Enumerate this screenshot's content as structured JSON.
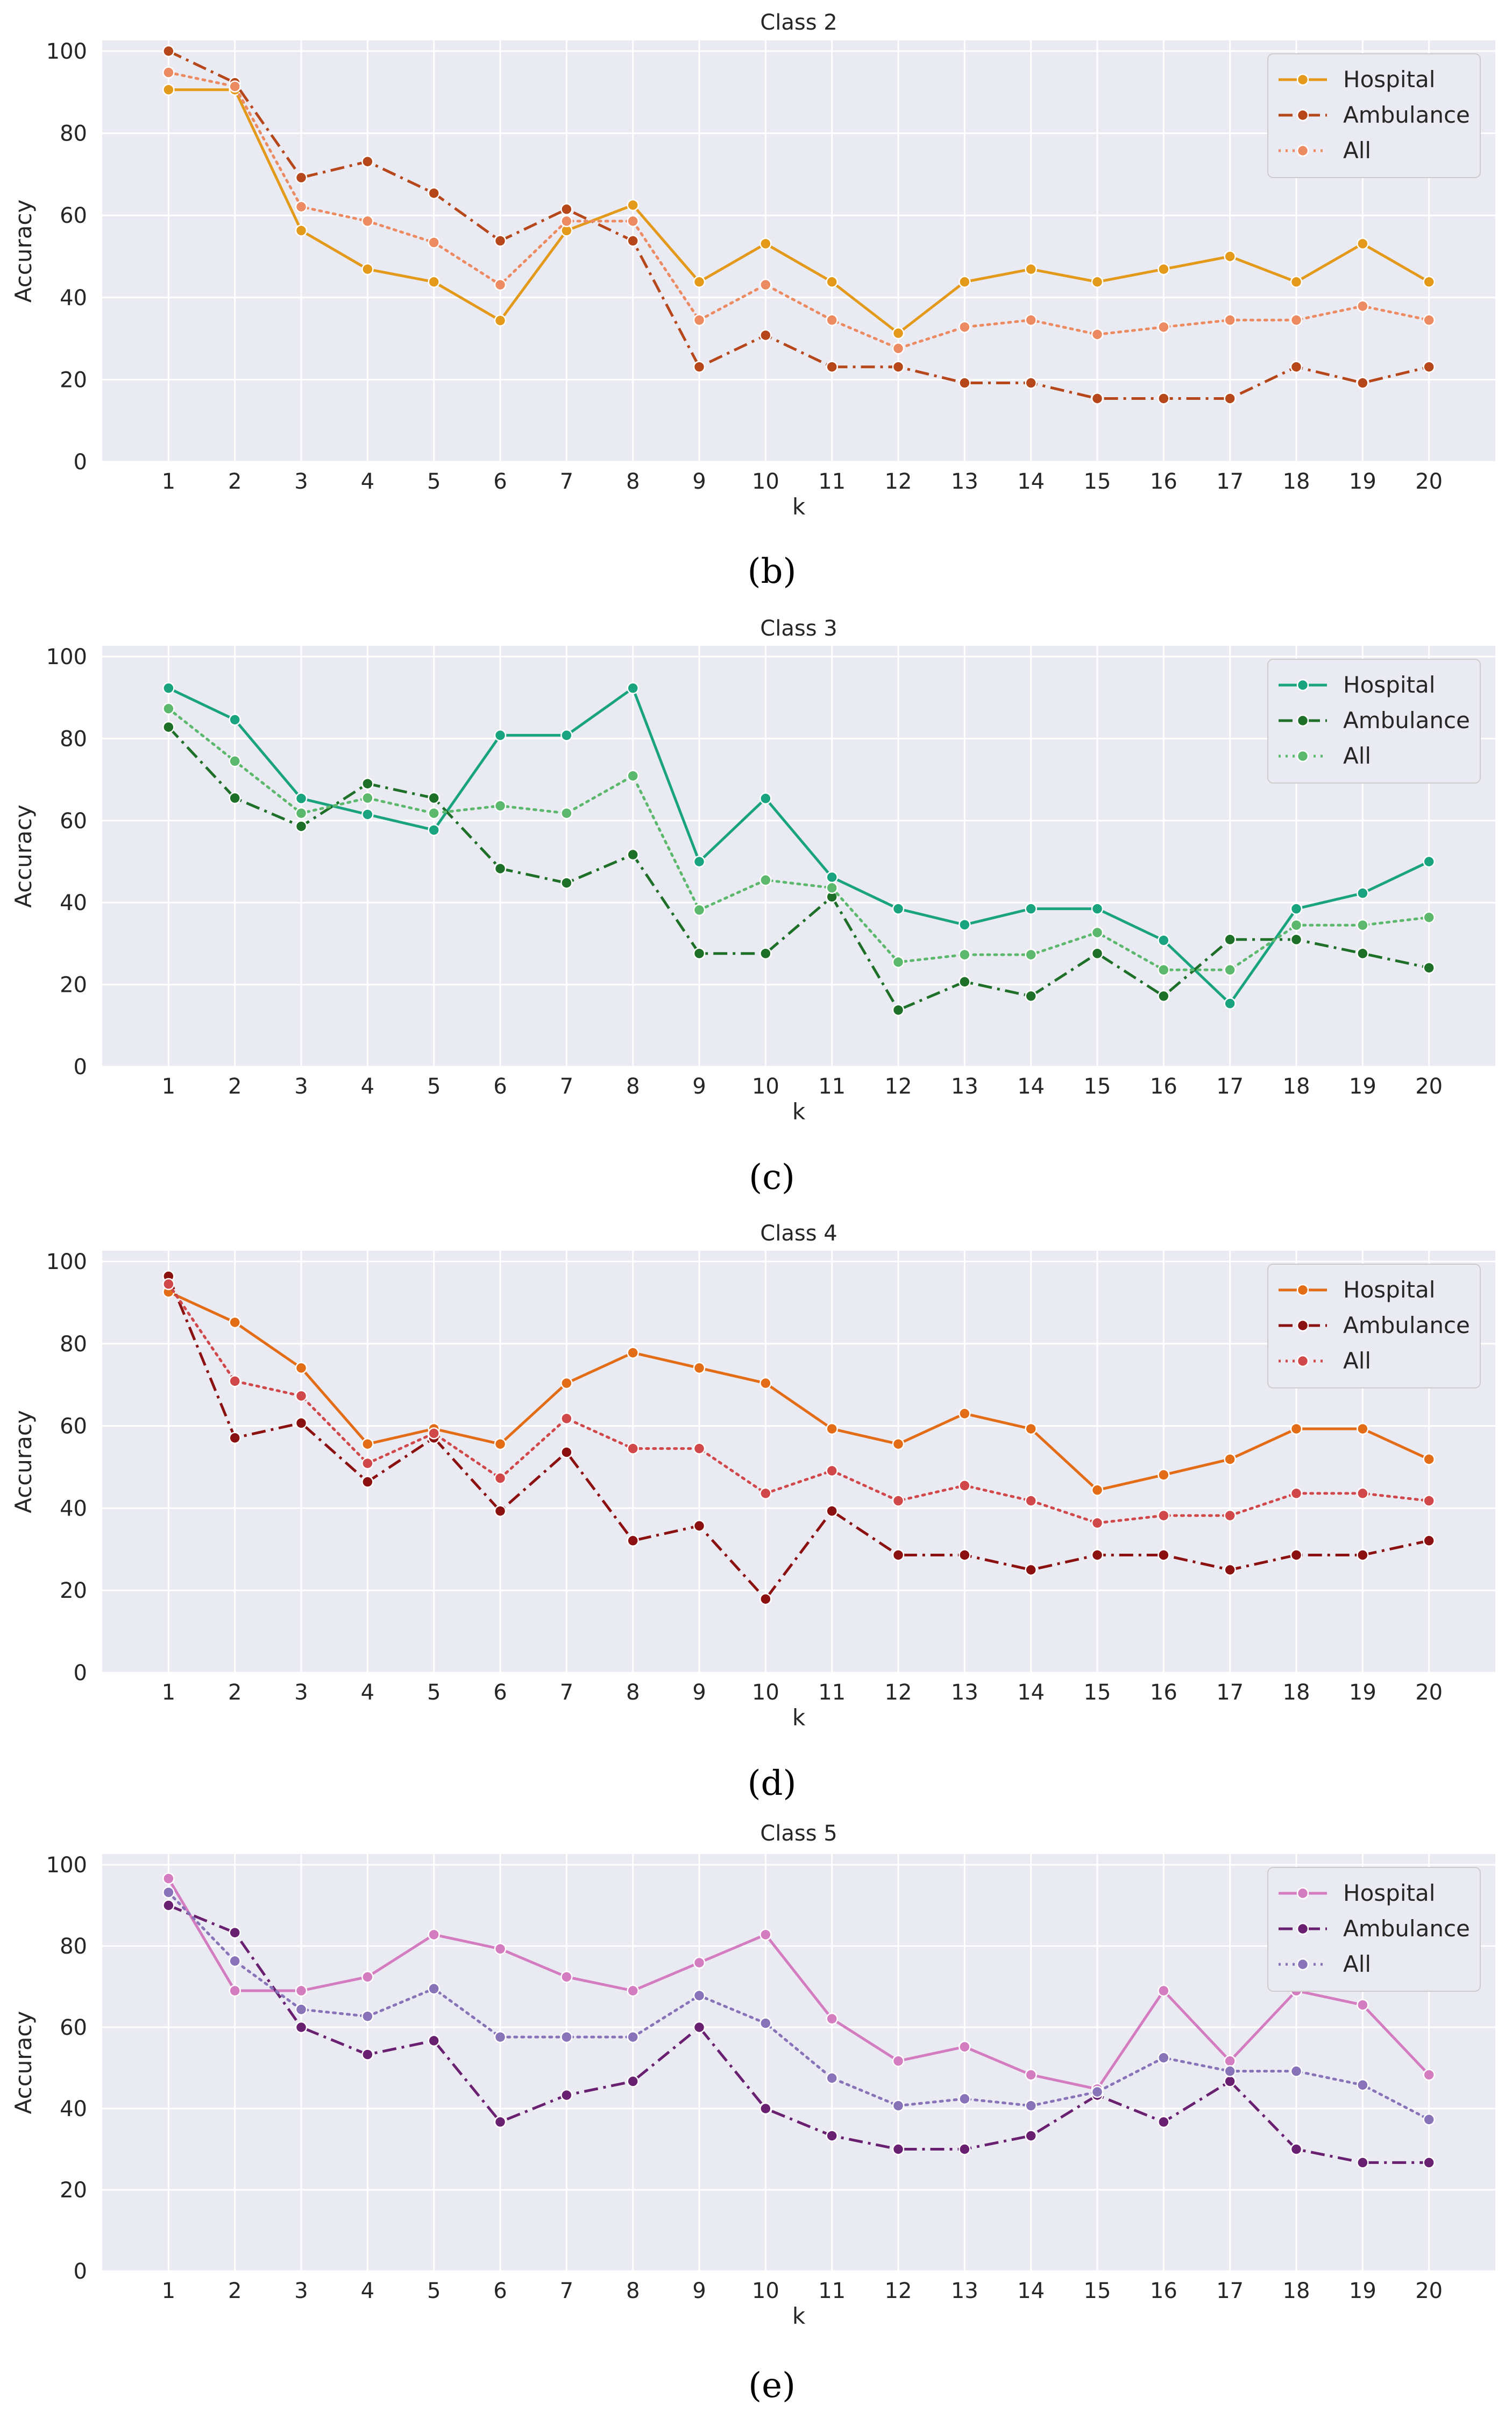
{
  "chart_data": [
    {
      "type": "line",
      "title": "Class 2",
      "panel_label": "(b)",
      "xlabel": "k",
      "ylabel": "Accuracy",
      "ylim": [
        0,
        100
      ],
      "yticks": [
        0,
        20,
        40,
        60,
        80,
        100
      ],
      "x": [
        1,
        2,
        3,
        4,
        5,
        6,
        7,
        8,
        9,
        10,
        11,
        12,
        13,
        14,
        15,
        16,
        17,
        18,
        19,
        20
      ],
      "grid": true,
      "legend_position": "top-right",
      "series": [
        {
          "name": "Hospital",
          "style": "solid",
          "color": "#E39A1B",
          "values": [
            90.6,
            90.6,
            56.3,
            46.9,
            43.8,
            34.4,
            56.3,
            62.5,
            43.8,
            53.1,
            43.8,
            31.3,
            43.8,
            46.9,
            43.8,
            46.9,
            50.0,
            43.8,
            53.1,
            43.8
          ]
        },
        {
          "name": "Ambulance",
          "style": "dashdot",
          "color": "#B5471B",
          "values": [
            100.0,
            92.3,
            69.2,
            73.1,
            65.4,
            53.8,
            61.5,
            53.8,
            23.1,
            30.8,
            23.1,
            23.1,
            19.2,
            19.2,
            15.4,
            15.4,
            15.4,
            23.1,
            19.2,
            23.1
          ]
        },
        {
          "name": "All",
          "style": "dotted",
          "color": "#EC8A62",
          "values": [
            94.8,
            91.4,
            62.1,
            58.6,
            53.4,
            43.1,
            58.6,
            58.6,
            34.5,
            43.1,
            34.5,
            27.6,
            32.8,
            34.5,
            31.0,
            32.8,
            34.5,
            34.5,
            37.9,
            34.5
          ]
        }
      ]
    },
    {
      "type": "line",
      "title": "Class 3",
      "panel_label": "(c)",
      "xlabel": "k",
      "ylabel": "Accuracy",
      "ylim": [
        0,
        100
      ],
      "yticks": [
        0,
        20,
        40,
        60,
        80,
        100
      ],
      "x": [
        1,
        2,
        3,
        4,
        5,
        6,
        7,
        8,
        9,
        10,
        11,
        12,
        13,
        14,
        15,
        16,
        17,
        18,
        19,
        20
      ],
      "grid": true,
      "legend_position": "top-right",
      "series": [
        {
          "name": "Hospital",
          "style": "solid",
          "color": "#1AA37F",
          "values": [
            92.3,
            84.6,
            65.4,
            61.5,
            57.7,
            80.8,
            80.8,
            92.3,
            50.0,
            65.4,
            46.2,
            38.5,
            34.6,
            38.5,
            38.5,
            30.8,
            15.4,
            38.5,
            42.3,
            50.0
          ]
        },
        {
          "name": "Ambulance",
          "style": "dashdot",
          "color": "#1E6F28",
          "values": [
            82.8,
            65.5,
            58.6,
            69.0,
            65.5,
            48.3,
            44.8,
            51.7,
            27.6,
            27.6,
            41.4,
            13.8,
            20.7,
            17.2,
            27.6,
            17.2,
            31.0,
            31.0,
            27.6,
            24.1
          ]
        },
        {
          "name": "All",
          "style": "dotted",
          "color": "#5CB86C",
          "values": [
            87.3,
            74.5,
            61.8,
            65.5,
            61.8,
            63.6,
            61.8,
            70.9,
            38.2,
            45.5,
            43.6,
            25.5,
            27.3,
            27.3,
            32.7,
            23.6,
            23.6,
            34.5,
            34.5,
            36.4
          ]
        }
      ]
    },
    {
      "type": "line",
      "title": "Class 4",
      "panel_label": "(d)",
      "xlabel": "k",
      "ylabel": "Accuracy",
      "ylim": [
        0,
        100
      ],
      "yticks": [
        0,
        20,
        40,
        60,
        80,
        100
      ],
      "x": [
        1,
        2,
        3,
        4,
        5,
        6,
        7,
        8,
        9,
        10,
        11,
        12,
        13,
        14,
        15,
        16,
        17,
        18,
        19,
        20
      ],
      "grid": true,
      "legend_position": "top-right",
      "series": [
        {
          "name": "Hospital",
          "style": "solid",
          "color": "#E26D16",
          "values": [
            92.6,
            85.2,
            74.1,
            55.6,
            59.3,
            55.6,
            70.4,
            77.8,
            74.1,
            70.4,
            59.3,
            55.6,
            63.0,
            59.3,
            44.4,
            48.1,
            51.9,
            59.3,
            59.3,
            51.9
          ]
        },
        {
          "name": "Ambulance",
          "style": "dashdot",
          "color": "#8B1010",
          "values": [
            96.4,
            57.1,
            60.7,
            46.4,
            57.1,
            39.3,
            53.6,
            32.1,
            35.7,
            17.9,
            39.3,
            28.6,
            28.6,
            25.0,
            28.6,
            28.6,
            25.0,
            28.6,
            28.6,
            32.1
          ]
        },
        {
          "name": "All",
          "style": "dotted",
          "color": "#D0484A",
          "values": [
            94.5,
            70.9,
            67.3,
            50.9,
            58.2,
            47.3,
            61.8,
            54.5,
            54.5,
            43.6,
            49.1,
            41.8,
            45.5,
            41.8,
            36.4,
            38.2,
            38.2,
            43.6,
            43.6,
            41.8
          ]
        }
      ]
    },
    {
      "type": "line",
      "title": "Class 5",
      "panel_label": "(e)",
      "xlabel": "k",
      "ylabel": "Accuracy",
      "ylim": [
        0,
        100
      ],
      "yticks": [
        0,
        20,
        40,
        60,
        80,
        100
      ],
      "x": [
        1,
        2,
        3,
        4,
        5,
        6,
        7,
        8,
        9,
        10,
        11,
        12,
        13,
        14,
        15,
        16,
        17,
        18,
        19,
        20
      ],
      "grid": true,
      "legend_position": "top-right",
      "series": [
        {
          "name": "Hospital",
          "style": "solid",
          "color": "#D47CC0",
          "values": [
            96.6,
            69.0,
            69.0,
            72.4,
            82.8,
            79.3,
            72.4,
            69.0,
            75.9,
            82.8,
            62.1,
            51.7,
            55.2,
            48.3,
            44.8,
            69.0,
            51.7,
            69.0,
            65.5,
            48.3
          ]
        },
        {
          "name": "Ambulance",
          "style": "dashdot",
          "color": "#6A2070",
          "values": [
            90.0,
            83.3,
            60.0,
            53.3,
            56.7,
            36.7,
            43.3,
            46.7,
            60.0,
            40.0,
            33.3,
            30.0,
            30.0,
            33.3,
            43.3,
            36.7,
            46.7,
            30.0,
            26.7,
            26.7
          ]
        },
        {
          "name": "All",
          "style": "dotted",
          "color": "#8872B8",
          "values": [
            93.2,
            76.3,
            64.4,
            62.7,
            69.5,
            57.6,
            57.6,
            57.6,
            67.8,
            61.0,
            47.5,
            40.7,
            42.4,
            40.7,
            44.1,
            52.5,
            49.2,
            49.2,
            45.8,
            37.3
          ]
        }
      ]
    }
  ]
}
